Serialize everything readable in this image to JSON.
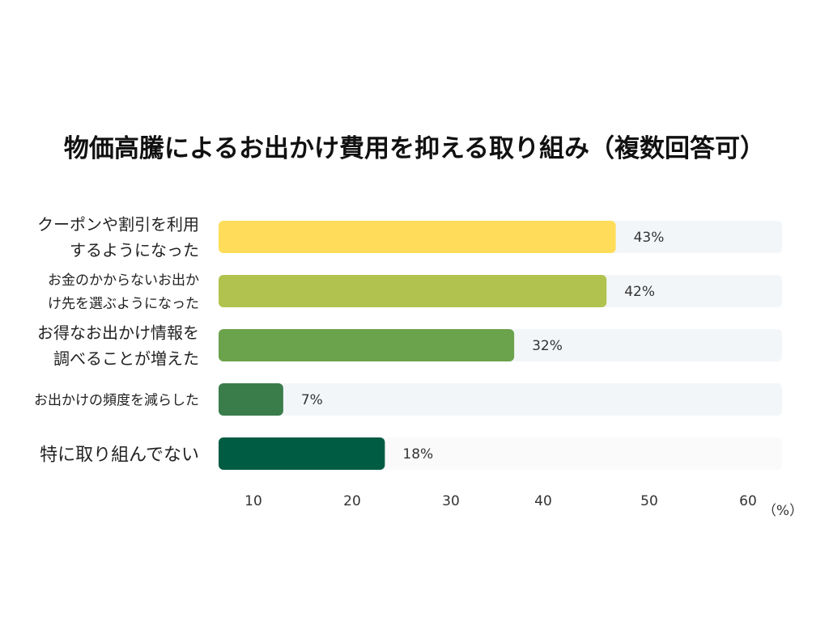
{
  "chart_data": {
    "type": "bar",
    "orientation": "horizontal",
    "title": "物価高騰によるお出かけ費用を抑える取り組み（複数回答可）",
    "categories": [
      [
        "クーポンや割引を利用",
        "するようになった"
      ],
      [
        "お金のかからないお出か",
        "け先を選ぶようになった"
      ],
      [
        "お得なお出かけ情報を",
        "調べることが増えた"
      ],
      [
        "お出かけの頻度を減らした"
      ],
      [
        "特に取り組んでない"
      ]
    ],
    "values": [
      43,
      42,
      32,
      7,
      18
    ],
    "value_labels": [
      "43%",
      "42%",
      "32%",
      "7%",
      "18%"
    ],
    "bar_colors": [
      "#FFDD5A",
      "#B1C34E",
      "#6BA24C",
      "#3A7D4A",
      "#005C42"
    ],
    "track_colors": [
      "#F3F6F9",
      "#F3F6F9",
      "#F3F6F9",
      "#F3F6F9",
      "#FAFAFA"
    ],
    "x_ticks": [
      "10",
      "20",
      "30",
      "40",
      "50",
      "60"
    ],
    "unit_label": "（%）",
    "xlim": [
      0,
      61
    ],
    "grid": false,
    "legend": "none"
  }
}
